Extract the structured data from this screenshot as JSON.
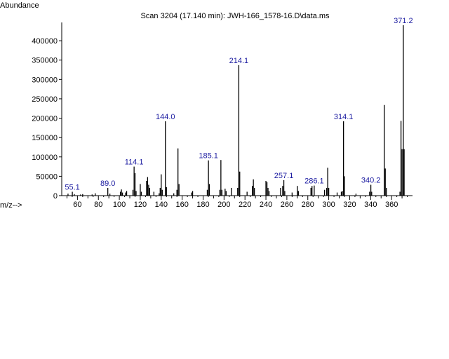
{
  "chart_data": {
    "type": "bar",
    "title": "Scan 3204 (17.140 min): JWH-166_1578-16.D\\data.ms",
    "xlabel": "m/z-->",
    "ylabel": "Abundance",
    "xlim": [
      45,
      380
    ],
    "ylim": [
      0,
      440000
    ],
    "x_ticks": [
      60,
      80,
      100,
      120,
      140,
      160,
      180,
      200,
      220,
      240,
      260,
      280,
      300,
      320,
      340,
      360
    ],
    "y_ticks": [
      0,
      50000,
      100000,
      150000,
      200000,
      250000,
      300000,
      350000,
      400000
    ],
    "bar_color": "#000000",
    "label_color": "#1a1aa0",
    "series": [
      {
        "values": [
          {
            "x": 51,
            "y": 5000
          },
          {
            "x": 55.1,
            "y": 10000
          },
          {
            "x": 57,
            "y": 4000
          },
          {
            "x": 63,
            "y": 3000
          },
          {
            "x": 65,
            "y": 4000
          },
          {
            "x": 74,
            "y": 3000
          },
          {
            "x": 77,
            "y": 6000
          },
          {
            "x": 89.0,
            "y": 20000
          },
          {
            "x": 91,
            "y": 5000
          },
          {
            "x": 101,
            "y": 10000
          },
          {
            "x": 102,
            "y": 16000
          },
          {
            "x": 103,
            "y": 8000
          },
          {
            "x": 106,
            "y": 8000
          },
          {
            "x": 107,
            "y": 12000
          },
          {
            "x": 113,
            "y": 15000
          },
          {
            "x": 114.1,
            "y": 75000
          },
          {
            "x": 115,
            "y": 58000
          },
          {
            "x": 116,
            "y": 12000
          },
          {
            "x": 120,
            "y": 30000
          },
          {
            "x": 121,
            "y": 10000
          },
          {
            "x": 126,
            "y": 38000
          },
          {
            "x": 127,
            "y": 48000
          },
          {
            "x": 128,
            "y": 28000
          },
          {
            "x": 129,
            "y": 20000
          },
          {
            "x": 133,
            "y": 10000
          },
          {
            "x": 138,
            "y": 6000
          },
          {
            "x": 139,
            "y": 20000
          },
          {
            "x": 140,
            "y": 55000
          },
          {
            "x": 141,
            "y": 15000
          },
          {
            "x": 144.0,
            "y": 192000
          },
          {
            "x": 145,
            "y": 22000
          },
          {
            "x": 152,
            "y": 6000
          },
          {
            "x": 155,
            "y": 15000
          },
          {
            "x": 156,
            "y": 122000
          },
          {
            "x": 157,
            "y": 30000
          },
          {
            "x": 169,
            "y": 8000
          },
          {
            "x": 170,
            "y": 12000
          },
          {
            "x": 184,
            "y": 15000
          },
          {
            "x": 185.1,
            "y": 91000
          },
          {
            "x": 186,
            "y": 30000
          },
          {
            "x": 196,
            "y": 15000
          },
          {
            "x": 197,
            "y": 92000
          },
          {
            "x": 198,
            "y": 15000
          },
          {
            "x": 201,
            "y": 18000
          },
          {
            "x": 202,
            "y": 12000
          },
          {
            "x": 207,
            "y": 20000
          },
          {
            "x": 213,
            "y": 20000
          },
          {
            "x": 214.1,
            "y": 337000
          },
          {
            "x": 215,
            "y": 62000
          },
          {
            "x": 222,
            "y": 10000
          },
          {
            "x": 227,
            "y": 25000
          },
          {
            "x": 228,
            "y": 42000
          },
          {
            "x": 229,
            "y": 20000
          },
          {
            "x": 240,
            "y": 38000
          },
          {
            "x": 241,
            "y": 35000
          },
          {
            "x": 242,
            "y": 20000
          },
          {
            "x": 243,
            "y": 12000
          },
          {
            "x": 254,
            "y": 20000
          },
          {
            "x": 256,
            "y": 25000
          },
          {
            "x": 257.1,
            "y": 40000
          },
          {
            "x": 258,
            "y": 12000
          },
          {
            "x": 265,
            "y": 8000
          },
          {
            "x": 270,
            "y": 25000
          },
          {
            "x": 271,
            "y": 12000
          },
          {
            "x": 283,
            "y": 20000
          },
          {
            "x": 284,
            "y": 25000
          },
          {
            "x": 286.1,
            "y": 26000
          },
          {
            "x": 296,
            "y": 15000
          },
          {
            "x": 298,
            "y": 20000
          },
          {
            "x": 299,
            "y": 72000
          },
          {
            "x": 300,
            "y": 20000
          },
          {
            "x": 308,
            "y": 8000
          },
          {
            "x": 312,
            "y": 10000
          },
          {
            "x": 313,
            "y": 12000
          },
          {
            "x": 314.1,
            "y": 192000
          },
          {
            "x": 315,
            "y": 50000
          },
          {
            "x": 326,
            "y": 5000
          },
          {
            "x": 339,
            "y": 10000
          },
          {
            "x": 340.2,
            "y": 28000
          },
          {
            "x": 341,
            "y": 10000
          },
          {
            "x": 353,
            "y": 234000
          },
          {
            "x": 354,
            "y": 70000
          },
          {
            "x": 355,
            "y": 20000
          },
          {
            "x": 368,
            "y": 10000
          },
          {
            "x": 369,
            "y": 193000
          },
          {
            "x": 370,
            "y": 120000
          },
          {
            "x": 371.2,
            "y": 440000
          },
          {
            "x": 372,
            "y": 120000
          }
        ]
      }
    ],
    "peak_labels": [
      {
        "x": 55.1,
        "y": 10000,
        "text": "55.1"
      },
      {
        "x": 89.0,
        "y": 20000,
        "text": "89.0"
      },
      {
        "x": 114.1,
        "y": 75000,
        "text": "114.1"
      },
      {
        "x": 144.0,
        "y": 192000,
        "text": "144.0"
      },
      {
        "x": 185.1,
        "y": 91000,
        "text": "185.1"
      },
      {
        "x": 214.1,
        "y": 337000,
        "text": "214.1"
      },
      {
        "x": 257.1,
        "y": 40000,
        "text": "257.1"
      },
      {
        "x": 286.1,
        "y": 26000,
        "text": "286.1"
      },
      {
        "x": 314.1,
        "y": 192000,
        "text": "314.1"
      },
      {
        "x": 340.2,
        "y": 28000,
        "text": "340.2"
      },
      {
        "x": 371.2,
        "y": 440000,
        "text": "371.2"
      }
    ]
  }
}
